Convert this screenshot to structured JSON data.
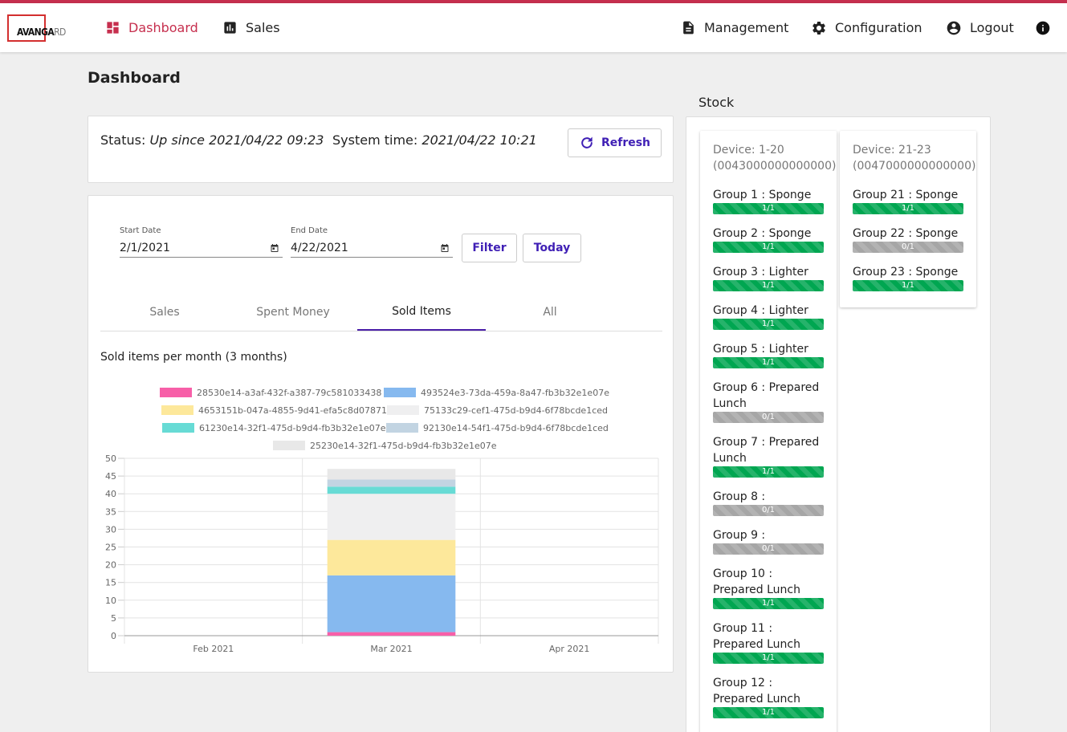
{
  "nav": {
    "logo_text_bold": "AVANGA",
    "logo_text_light": "RD",
    "dashboard": "Dashboard",
    "sales": "Sales",
    "management": "Management",
    "configuration": "Configuration",
    "logout": "Logout"
  },
  "page": {
    "title": "Dashboard"
  },
  "status": {
    "status_label": "Status:",
    "status_value": "Up since 2021/04/22 09:23",
    "time_label": "System time:",
    "time_value": "2021/04/22 10:21",
    "refresh": "Refresh"
  },
  "filter": {
    "start_label": "Start Date",
    "start_value": "2/1/2021",
    "end_label": "End Date",
    "end_value": "4/22/2021",
    "filter_button": "Filter",
    "today_button": "Today"
  },
  "tabs": [
    "Sales",
    "Spent Money",
    "Sold Items",
    "All"
  ],
  "active_tab": "Sold Items",
  "chart_data": {
    "type": "bar",
    "stacked": true,
    "title": "Sold items per month (3 months)",
    "categories": [
      "Feb 2021",
      "Mar 2021",
      "Apr 2021"
    ],
    "ylim": [
      0,
      50
    ],
    "yticks": [
      0,
      5,
      10,
      15,
      20,
      25,
      30,
      35,
      40,
      45,
      50
    ],
    "grid": true,
    "legend_position": "top",
    "series": [
      {
        "name": "28530e14-a3af-432f-a387-79c581033438",
        "color": "#f75fa8",
        "values": [
          0,
          1,
          0
        ]
      },
      {
        "name": "493524e3-73da-459a-8a47-fb3b32e1e07e",
        "color": "#86b9ef",
        "values": [
          0,
          16,
          0
        ]
      },
      {
        "name": "4653151b-047a-4855-9d41-efa5c8d07871",
        "color": "#fde89b",
        "values": [
          0,
          10,
          0
        ]
      },
      {
        "name": "75133c29-cef1-475d-b9d4-6f78bcde1ced",
        "color": "#efeff0",
        "values": [
          0,
          13,
          0
        ]
      },
      {
        "name": "61230e14-32f1-475d-b9d4-fb3b32e1e07e",
        "color": "#67dbd5",
        "values": [
          0,
          2,
          0
        ]
      },
      {
        "name": "92130e14-54f1-475d-b9d4-6f78bcde1ced",
        "color": "#c2d4e2",
        "values": [
          0,
          2,
          0
        ]
      },
      {
        "name": "25230e14-32f1-475d-b9d4-fb3b32e1e07e",
        "color": "#e8e8e8",
        "values": [
          0,
          3,
          0
        ]
      }
    ]
  },
  "stock": {
    "title": "Stock",
    "devices": [
      {
        "header1": "Device: 1-20",
        "header2": "(0043000000000000)",
        "groups": [
          {
            "name": "Group 1 : Sponge",
            "level": "1/1",
            "full": true
          },
          {
            "name": "Group 2 : Sponge",
            "level": "1/1",
            "full": true
          },
          {
            "name": "Group 3 : Lighter",
            "level": "1/1",
            "full": true
          },
          {
            "name": "Group 4 : Lighter",
            "level": "1/1",
            "full": true
          },
          {
            "name": "Group 5 : Lighter",
            "level": "1/1",
            "full": true
          },
          {
            "name": "Group 6 : Prepared Lunch",
            "level": "0/1",
            "full": false
          },
          {
            "name": "Group 7 : Prepared Lunch",
            "level": "1/1",
            "full": true
          },
          {
            "name": "Group 8 :",
            "level": "0/1",
            "full": false
          },
          {
            "name": "Group 9 :",
            "level": "0/1",
            "full": false
          },
          {
            "name": "Group 10 : Prepared Lunch",
            "level": "1/1",
            "full": true
          },
          {
            "name": "Group 11 : Prepared Lunch",
            "level": "1/1",
            "full": true
          },
          {
            "name": "Group 12 : Prepared Lunch",
            "level": "1/1",
            "full": true
          }
        ]
      },
      {
        "header1": "Device: 21-23",
        "header2": "(0047000000000000)",
        "groups": [
          {
            "name": "Group 21 : Sponge",
            "level": "1/1",
            "full": true
          },
          {
            "name": "Group 22 : Sponge",
            "level": "0/1",
            "full": false
          },
          {
            "name": "Group 23 : Sponge",
            "level": "1/1",
            "full": true
          }
        ]
      }
    ]
  }
}
